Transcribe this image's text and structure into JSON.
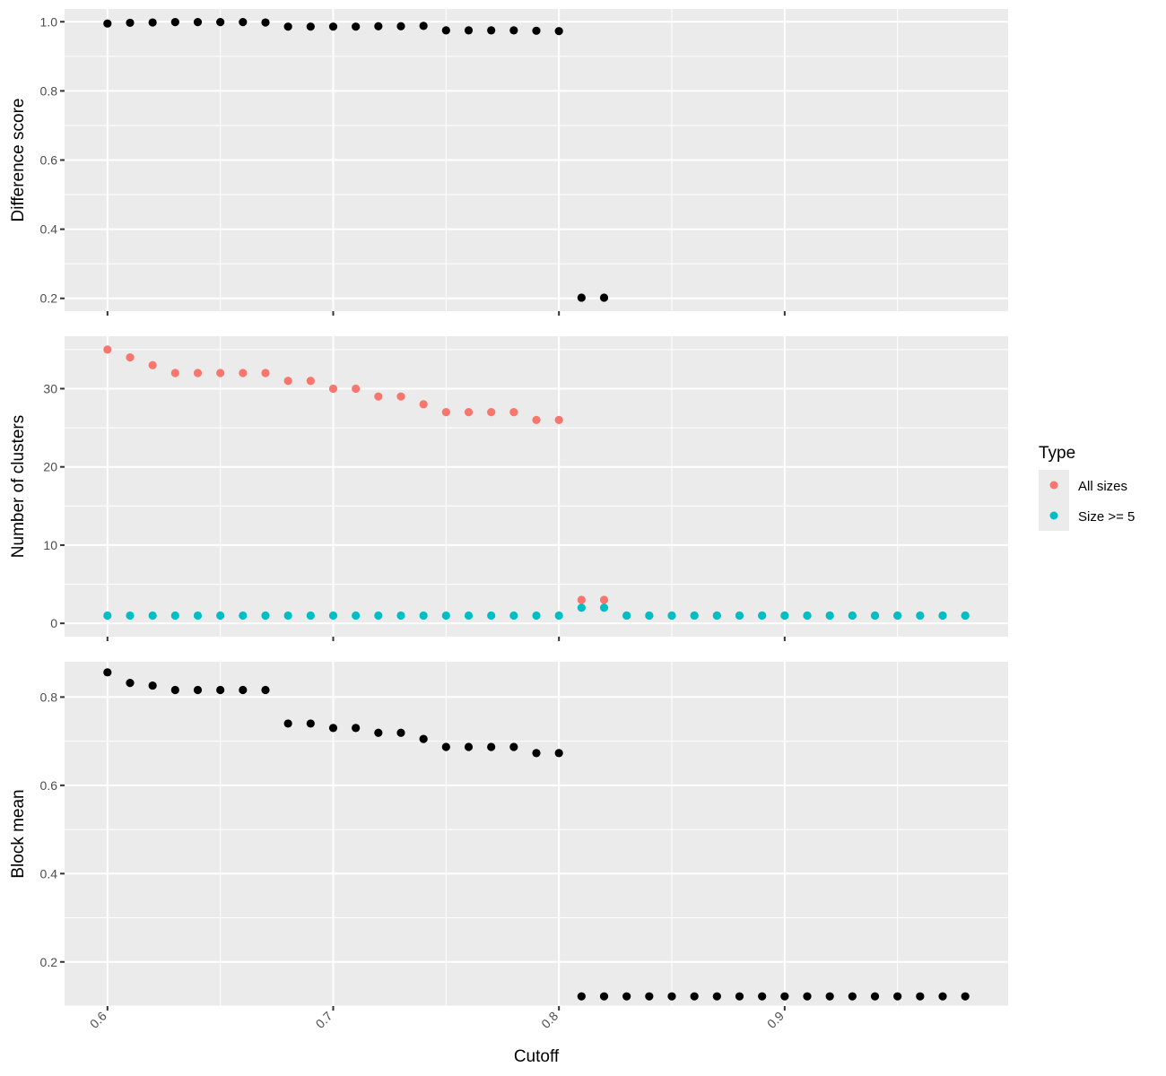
{
  "chart_data": {
    "type": "scatter",
    "xlabel": "Cutoff",
    "xlim": [
      0.581,
      0.999
    ],
    "x_major_ticks": [
      0.6,
      0.7,
      0.8,
      0.9
    ],
    "x_tick_labels": [
      "0.6",
      "0.7",
      "0.8",
      "0.9"
    ],
    "x_minor_ticks": [
      0.65,
      0.75,
      0.85,
      0.95
    ],
    "grid": true,
    "colors": {
      "panel_background": "#ebebeb",
      "grid": "#ffffff",
      "single_series": "#000000",
      "all_sizes": "#f8766d",
      "size_ge_5": "#00bfc4"
    },
    "legend": {
      "title": "Type",
      "placement": "right",
      "entries": [
        {
          "label": "All sizes",
          "color": "#f8766d"
        },
        {
          "label": "Size >= 5",
          "color": "#00bfc4"
        }
      ]
    },
    "panels": [
      {
        "ylabel": "Difference score",
        "ylim": [
          0.163,
          1.037
        ],
        "y_major_ticks": [
          0.2,
          0.4,
          0.6,
          0.8,
          1.0
        ],
        "y_tick_labels": [
          "0.2",
          "0.4",
          "0.6",
          "0.8",
          "1.0"
        ],
        "y_minor_ticks": [
          0.3,
          0.5,
          0.7,
          0.9
        ],
        "series": [
          {
            "color": "#000000",
            "x": [
              0.6,
              0.61,
              0.62,
              0.63,
              0.64,
              0.65,
              0.66,
              0.67,
              0.68,
              0.69,
              0.7,
              0.71,
              0.72,
              0.73,
              0.74,
              0.75,
              0.76,
              0.77,
              0.78,
              0.79,
              0.8,
              0.81,
              0.82
            ],
            "y": [
              0.995,
              0.997,
              0.998,
              0.999,
              0.999,
              0.999,
              0.999,
              0.998,
              0.986,
              0.986,
              0.986,
              0.986,
              0.987,
              0.987,
              0.988,
              0.975,
              0.975,
              0.975,
              0.975,
              0.974,
              0.973,
              0.202,
              0.202
            ]
          }
        ]
      },
      {
        "ylabel": "Number of clusters",
        "ylim": [
          -1.7,
          36.7
        ],
        "y_major_ticks": [
          0,
          10,
          20,
          30
        ],
        "y_tick_labels": [
          "0",
          "10",
          "20",
          "30"
        ],
        "y_minor_ticks": [
          5,
          15,
          25,
          35
        ],
        "series": [
          {
            "name": "All sizes",
            "color": "#f8766d",
            "x": [
              0.6,
              0.61,
              0.62,
              0.63,
              0.64,
              0.65,
              0.66,
              0.67,
              0.68,
              0.69,
              0.7,
              0.71,
              0.72,
              0.73,
              0.74,
              0.75,
              0.76,
              0.77,
              0.78,
              0.79,
              0.8,
              0.81,
              0.82,
              0.83,
              0.84,
              0.85,
              0.86,
              0.87,
              0.88,
              0.89,
              0.9,
              0.91,
              0.92,
              0.93,
              0.94,
              0.95,
              0.96,
              0.97,
              0.98
            ],
            "y": [
              35,
              34,
              33,
              32,
              32,
              32,
              32,
              32,
              31,
              31,
              30,
              30,
              29,
              29,
              28,
              27,
              27,
              27,
              27,
              26,
              26,
              3,
              3,
              1,
              1,
              1,
              1,
              1,
              1,
              1,
              1,
              1,
              1,
              1,
              1,
              1,
              1,
              1,
              1
            ]
          },
          {
            "name": "Size >= 5",
            "color": "#00bfc4",
            "x": [
              0.6,
              0.61,
              0.62,
              0.63,
              0.64,
              0.65,
              0.66,
              0.67,
              0.68,
              0.69,
              0.7,
              0.71,
              0.72,
              0.73,
              0.74,
              0.75,
              0.76,
              0.77,
              0.78,
              0.79,
              0.8,
              0.81,
              0.82,
              0.83,
              0.84,
              0.85,
              0.86,
              0.87,
              0.88,
              0.89,
              0.9,
              0.91,
              0.92,
              0.93,
              0.94,
              0.95,
              0.96,
              0.97,
              0.98
            ],
            "y": [
              1,
              1,
              1,
              1,
              1,
              1,
              1,
              1,
              1,
              1,
              1,
              1,
              1,
              1,
              1,
              1,
              1,
              1,
              1,
              1,
              1,
              2,
              2,
              1,
              1,
              1,
              1,
              1,
              1,
              1,
              1,
              1,
              1,
              1,
              1,
              1,
              1,
              1,
              1
            ]
          }
        ]
      },
      {
        "ylabel": "Block mean",
        "ylim": [
          0.1,
          0.88
        ],
        "y_major_ticks": [
          0.2,
          0.4,
          0.6,
          0.8
        ],
        "y_tick_labels": [
          "0.2",
          "0.4",
          "0.6",
          "0.8"
        ],
        "y_minor_ticks": [
          0.1,
          0.3,
          0.5,
          0.7
        ],
        "series": [
          {
            "color": "#000000",
            "x": [
              0.6,
              0.61,
              0.62,
              0.63,
              0.64,
              0.65,
              0.66,
              0.67,
              0.68,
              0.69,
              0.7,
              0.71,
              0.72,
              0.73,
              0.74,
              0.75,
              0.76,
              0.77,
              0.78,
              0.79,
              0.8,
              0.81,
              0.82,
              0.83,
              0.84,
              0.85,
              0.86,
              0.87,
              0.88,
              0.89,
              0.9,
              0.91,
              0.92,
              0.93,
              0.94,
              0.95,
              0.96,
              0.97,
              0.98
            ],
            "y": [
              0.856,
              0.832,
              0.826,
              0.816,
              0.816,
              0.816,
              0.816,
              0.816,
              0.74,
              0.74,
              0.73,
              0.73,
              0.719,
              0.719,
              0.705,
              0.687,
              0.687,
              0.687,
              0.687,
              0.673,
              0.673,
              0.122,
              0.122,
              0.122,
              0.122,
              0.122,
              0.122,
              0.122,
              0.122,
              0.122,
              0.122,
              0.122,
              0.122,
              0.122,
              0.122,
              0.122,
              0.122,
              0.122,
              0.122
            ]
          }
        ]
      }
    ]
  }
}
